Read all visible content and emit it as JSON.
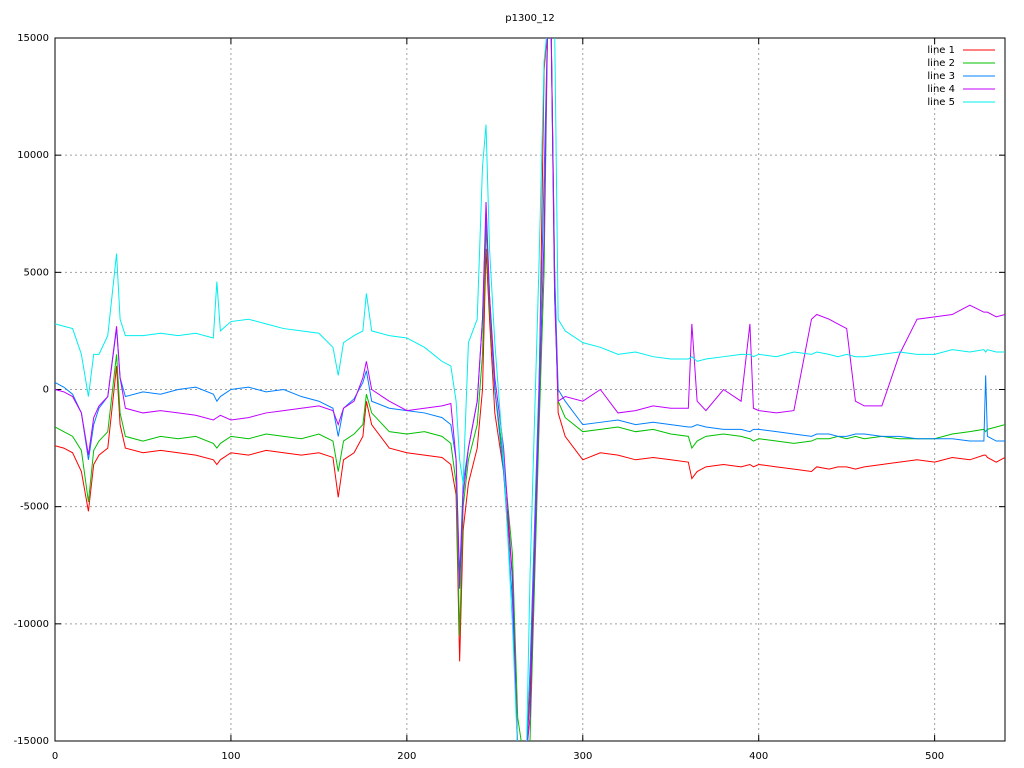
{
  "chart_data": {
    "type": "line",
    "title": "p1300_12",
    "x": [
      0,
      5,
      10,
      15,
      19,
      22,
      25,
      30,
      35,
      37,
      40,
      50,
      60,
      70,
      80,
      90,
      92,
      94,
      100,
      110,
      120,
      130,
      140,
      150,
      158,
      161,
      164,
      170,
      175,
      177,
      180,
      190,
      200,
      210,
      220,
      225,
      228,
      230,
      232,
      235,
      240,
      243,
      245,
      247,
      250,
      255,
      260,
      263,
      266,
      268,
      270,
      275,
      278,
      280,
      282,
      284,
      286,
      290,
      300,
      310,
      320,
      330,
      340,
      350,
      360,
      362,
      365,
      370,
      380,
      390,
      395,
      397,
      400,
      410,
      420,
      430,
      433,
      440,
      445,
      450,
      455,
      460,
      470,
      480,
      490,
      500,
      510,
      520,
      528,
      529,
      530,
      535,
      540
    ],
    "series": [
      {
        "name": "line 1",
        "color": "#ff0000",
        "values": [
          -2400,
          -2500,
          -2700,
          -3500,
          -5200,
          -3200,
          -2800,
          -2500,
          1000,
          -1500,
          -2500,
          -2700,
          -2600,
          -2700,
          -2800,
          -3000,
          -3200,
          -3000,
          -2700,
          -2800,
          -2600,
          -2700,
          -2800,
          -2700,
          -2900,
          -4600,
          -3000,
          -2700,
          -2000,
          -500,
          -1500,
          -2500,
          -2700,
          -2800,
          -2900,
          -3200,
          -4500,
          -11600,
          -6000,
          -4000,
          -2500,
          0,
          6000,
          3000,
          -1000,
          -3500,
          -8000,
          -15500,
          -15500,
          -15500,
          -13000,
          -1000,
          13600,
          15500,
          15500,
          5000,
          -1000,
          -2000,
          -3000,
          -2700,
          -2800,
          -3000,
          -2900,
          -3000,
          -3100,
          -3800,
          -3500,
          -3300,
          -3200,
          -3300,
          -3200,
          -3300,
          -3200,
          -3300,
          -3400,
          -3500,
          -3300,
          -3400,
          -3300,
          -3300,
          -3400,
          -3300,
          -3200,
          -3100,
          -3000,
          -3100,
          -2900,
          -3000,
          -2800,
          -2800,
          -2900,
          -3100,
          -2900
        ]
      },
      {
        "name": "line 2",
        "color": "#00c000",
        "values": [
          -1600,
          -1800,
          -2000,
          -2600,
          -4800,
          -2600,
          -2200,
          -1800,
          1500,
          -1000,
          -2000,
          -2200,
          -2000,
          -2100,
          -2000,
          -2300,
          -2500,
          -2300,
          -2000,
          -2100,
          -1900,
          -2000,
          -2100,
          -1900,
          -2200,
          -3500,
          -2200,
          -1900,
          -1500,
          -200,
          -1000,
          -1800,
          -1900,
          -1800,
          -2000,
          -2300,
          -4000,
          -10500,
          -5000,
          -3000,
          -1500,
          1500,
          7000,
          3500,
          0,
          -3000,
          -7000,
          -14000,
          -15500,
          -15500,
          -15000,
          -2000,
          5000,
          15500,
          15500,
          4000,
          -500,
          -1200,
          -1800,
          -1700,
          -1600,
          -1800,
          -1700,
          -1900,
          -2000,
          -2500,
          -2200,
          -2000,
          -1900,
          -2000,
          -2100,
          -2200,
          -2100,
          -2200,
          -2300,
          -2200,
          -2100,
          -2100,
          -2000,
          -2100,
          -2000,
          -2100,
          -2000,
          -2100,
          -2100,
          -2100,
          -1900,
          -1800,
          -1700,
          -1800,
          -1700,
          -1600,
          -1500
        ]
      },
      {
        "name": "line 3",
        "color": "#0080ff",
        "values": [
          300,
          100,
          -200,
          -1000,
          -3000,
          -1500,
          -800,
          -300,
          2600,
          500,
          -300,
          -100,
          -200,
          0,
          100,
          -200,
          -500,
          -300,
          0,
          100,
          -100,
          0,
          -300,
          -500,
          -800,
          -2000,
          -800,
          -400,
          300,
          800,
          -500,
          -800,
          -900,
          -1000,
          -1200,
          -1500,
          -3000,
          -8000,
          -4000,
          -2500,
          -500,
          3000,
          7500,
          4000,
          0,
          -3500,
          -9000,
          -15500,
          -15500,
          -15500,
          -12000,
          0,
          9000,
          15500,
          15500,
          5000,
          0,
          -500,
          -1500,
          -1400,
          -1300,
          -1500,
          -1400,
          -1500,
          -1600,
          -1600,
          -1500,
          -1600,
          -1700,
          -1700,
          -1800,
          -1700,
          -1700,
          -1800,
          -1900,
          -2000,
          -1900,
          -1900,
          -2000,
          -2000,
          -1900,
          -1900,
          -2000,
          -2000,
          -2100,
          -2100,
          -2100,
          -2200,
          -2200,
          600,
          -2000,
          -2200,
          -2200
        ]
      },
      {
        "name": "line 4",
        "color": "#c000ff",
        "values": [
          0,
          -100,
          -300,
          -1000,
          -2800,
          -1200,
          -700,
          -300,
          2700,
          500,
          -800,
          -1000,
          -900,
          -1000,
          -1100,
          -1300,
          -1200,
          -1100,
          -1300,
          -1200,
          -1000,
          -900,
          -800,
          -700,
          -900,
          -1500,
          -800,
          -500,
          500,
          1200,
          0,
          -500,
          -900,
          -800,
          -700,
          -600,
          -3000,
          -8500,
          -4500,
          -2500,
          -500,
          3000,
          8000,
          4000,
          500,
          -2500,
          -8000,
          -15500,
          -15500,
          -15500,
          -14000,
          -1000,
          6500,
          15500,
          15500,
          4000,
          -500,
          -300,
          -500,
          0,
          -1000,
          -900,
          -700,
          -800,
          -800,
          2800,
          -500,
          -900,
          0,
          -500,
          2800,
          -800,
          -900,
          -1000,
          -900,
          3000,
          3200,
          3000,
          2800,
          2600,
          -500,
          -700,
          -700,
          1500,
          3000,
          3100,
          3200,
          3600,
          3300,
          3300,
          3300,
          3100,
          3200
        ]
      },
      {
        "name": "line 5",
        "color": "#00eeee",
        "values": [
          2800,
          2700,
          2600,
          1500,
          -300,
          1500,
          1500,
          2300,
          5800,
          3000,
          2300,
          2300,
          2400,
          2300,
          2400,
          2200,
          4600,
          2500,
          2900,
          3000,
          2800,
          2600,
          2500,
          2400,
          1800,
          600,
          2000,
          2300,
          2500,
          4100,
          2500,
          2300,
          2200,
          1800,
          1200,
          1000,
          -500,
          -3000,
          -4000,
          2000,
          3000,
          9500,
          11300,
          6000,
          2000,
          -3000,
          -10000,
          -15500,
          -15500,
          -15500,
          -8000,
          5000,
          14000,
          15500,
          15500,
          15500,
          3000,
          2500,
          2000,
          1800,
          1500,
          1600,
          1400,
          1300,
          1300,
          1400,
          1200,
          1300,
          1400,
          1500,
          1500,
          1400,
          1500,
          1400,
          1600,
          1500,
          1600,
          1500,
          1400,
          1500,
          1400,
          1400,
          1500,
          1600,
          1500,
          1500,
          1700,
          1600,
          1700,
          1600,
          1700,
          1600,
          1600
        ]
      }
    ],
    "xlim": [
      0,
      540
    ],
    "xticks": [
      0,
      100,
      200,
      300,
      400,
      500
    ],
    "ylim": [
      -15000,
      15000
    ],
    "yticks": [
      -15000,
      -10000,
      -5000,
      0,
      5000,
      10000,
      15000
    ],
    "grid": true,
    "legend": "top-right"
  }
}
